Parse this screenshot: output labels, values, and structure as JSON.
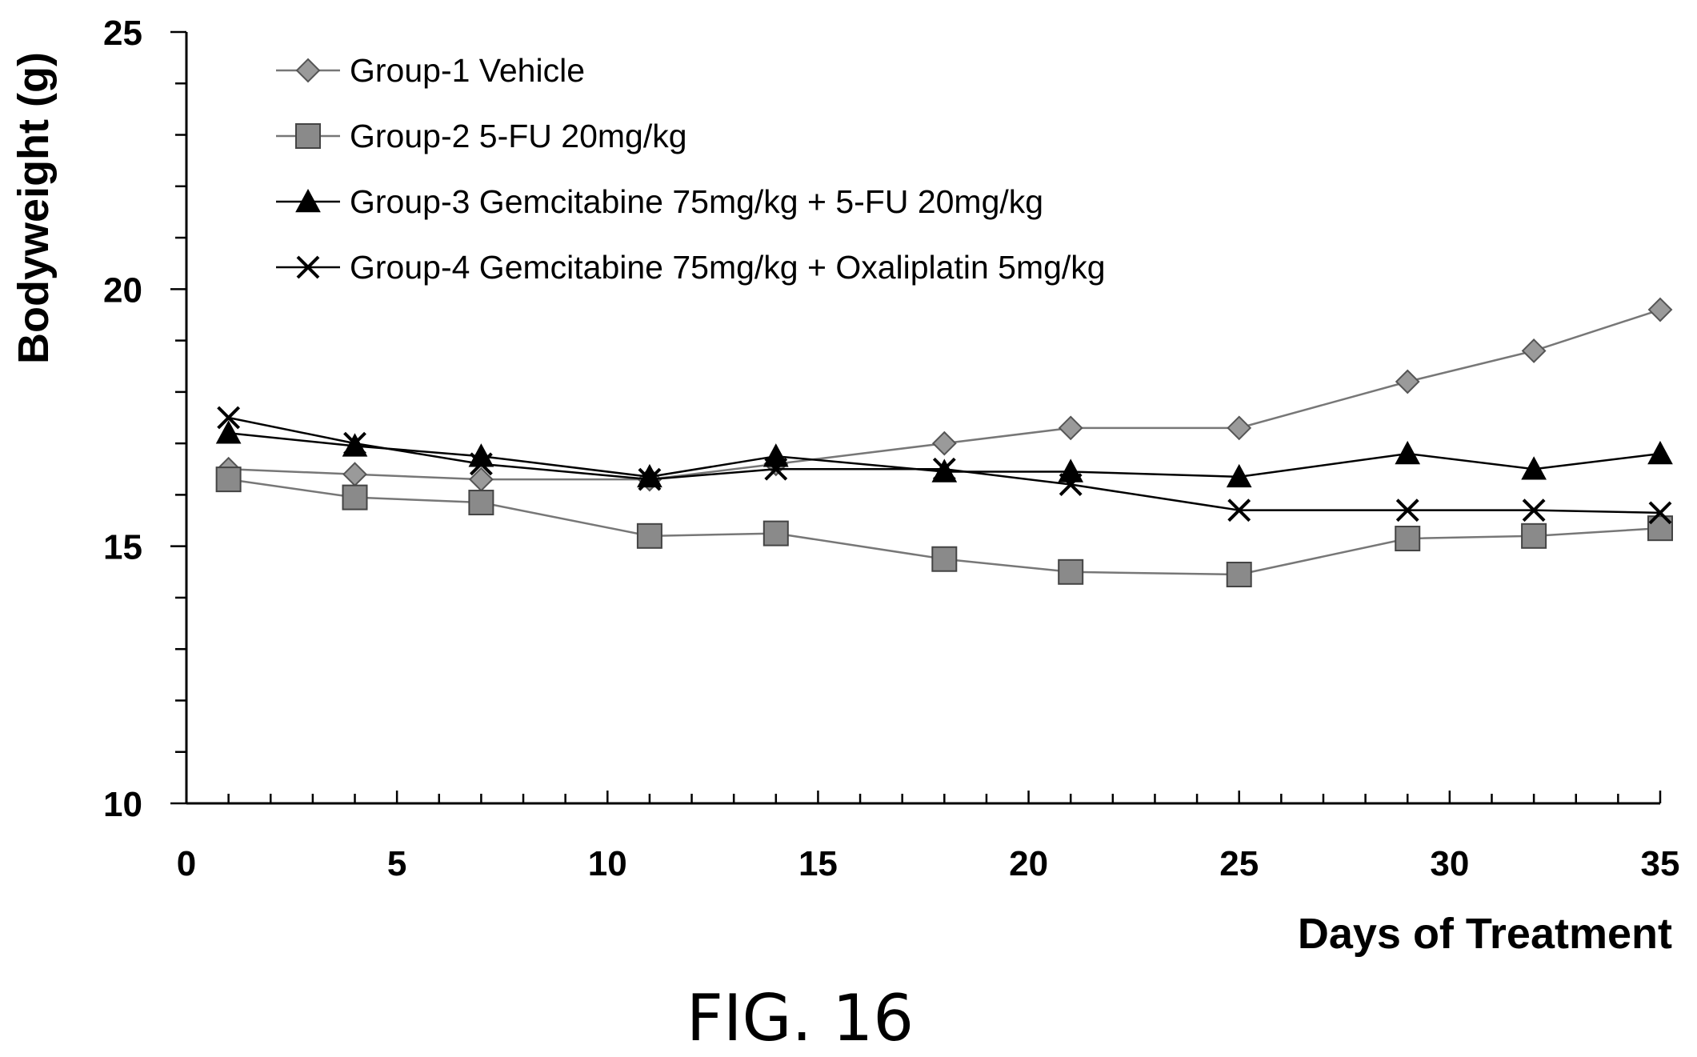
{
  "figure_label": "FIG. 16",
  "chart_data": {
    "type": "line",
    "xlabel": "Days of Treatment",
    "ylabel": "Bodyweight (g)",
    "xlim": [
      0,
      35
    ],
    "ylim": [
      10,
      25
    ],
    "x_ticks": [
      0,
      5,
      10,
      15,
      20,
      25,
      30,
      35
    ],
    "x_minor_step": 1,
    "y_ticks": [
      10,
      15,
      20,
      25
    ],
    "y_minor_step": 1,
    "legend_position": "top-left",
    "grid": false,
    "x": [
      1,
      4,
      7,
      11,
      14,
      18,
      21,
      25,
      29,
      32,
      35
    ],
    "series": [
      {
        "name": "Group-1 Vehicle",
        "marker": "diamond",
        "color": "#808080",
        "values": [
          16.5,
          16.4,
          16.3,
          16.3,
          16.6,
          17.0,
          17.3,
          17.3,
          18.2,
          18.8,
          19.6
        ]
      },
      {
        "name": "Group-2 5-FU 20mg/kg",
        "marker": "square",
        "color": "#808080",
        "values": [
          16.3,
          15.95,
          15.85,
          15.2,
          15.25,
          14.75,
          14.5,
          14.45,
          15.15,
          15.2,
          15.35
        ]
      },
      {
        "name": "Group-3 Gemcitabine  75mg/kg + 5-FU 20mg/kg",
        "marker": "triangle",
        "color": "#000000",
        "values": [
          17.2,
          16.95,
          16.75,
          16.35,
          16.75,
          16.45,
          16.45,
          16.35,
          16.8,
          16.5,
          16.8
        ]
      },
      {
        "name": "Group-4 Gemcitabine  75mg/kg + Oxaliplatin 5mg/kg",
        "marker": "x",
        "color": "#000000",
        "values": [
          17.5,
          17.0,
          16.6,
          16.3,
          16.5,
          16.5,
          16.2,
          15.7,
          15.7,
          15.7,
          15.65
        ]
      }
    ]
  }
}
